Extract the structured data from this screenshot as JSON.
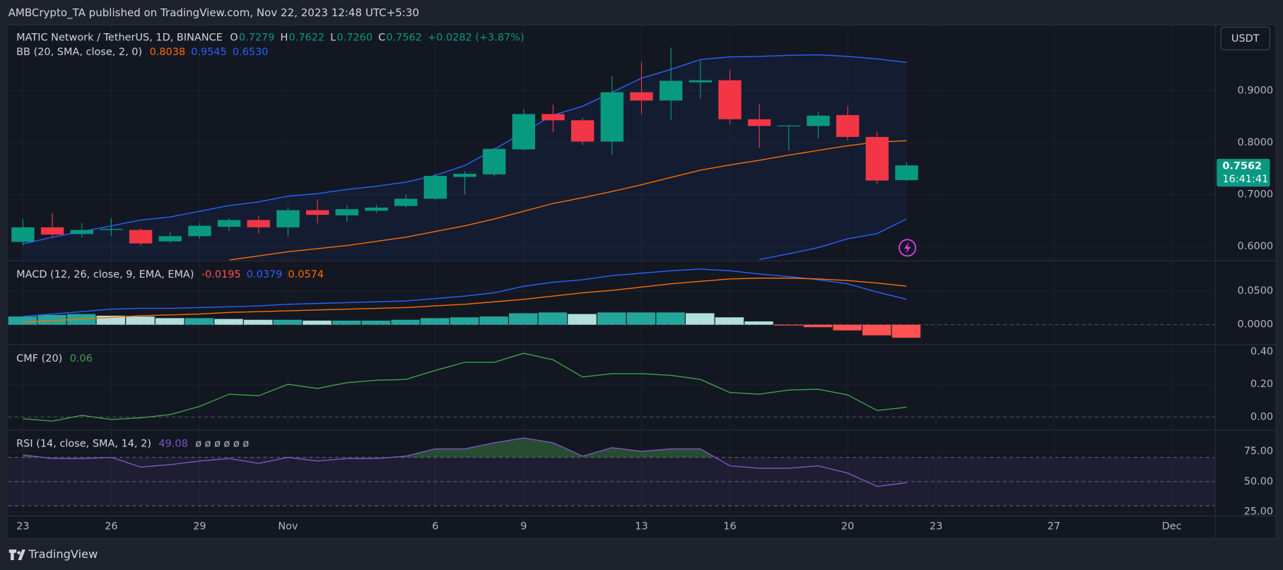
{
  "header": {
    "publisher": "AMBCrypto_TA published on TradingView.com, Nov 22, 2023 12:48 UTC+5:30"
  },
  "footer": {
    "brand": "TradingView"
  },
  "currency": "USDT",
  "chart_data": [
    {
      "type": "candlestick",
      "title": "MATIC Network / TetherUS, 1D, BINANCE",
      "ohlc_labels": [
        "O",
        "H",
        "L",
        "C"
      ],
      "ohlc_legend": [
        "0.7279",
        "0.7622",
        "0.7260",
        "0.7562"
      ],
      "change": "+0.0282 (+3.87%)",
      "last_price_label": "0.7562",
      "countdown": "16:41:41",
      "up_color": "#089981",
      "down_color": "#f23645",
      "open": [
        0.609,
        0.637,
        0.624,
        0.632,
        0.632,
        0.61,
        0.62,
        0.638,
        0.651,
        0.637,
        0.67,
        0.66,
        0.669,
        0.678,
        0.692,
        0.734,
        0.739,
        0.787,
        0.855,
        0.843,
        0.802,
        0.897,
        0.881,
        0.916,
        0.92,
        0.845,
        0.832,
        0.832,
        0.853,
        0.811,
        0.7279
      ],
      "high": [
        0.653,
        0.665,
        0.645,
        0.655,
        0.635,
        0.628,
        0.645,
        0.655,
        0.66,
        0.675,
        0.69,
        0.68,
        0.68,
        0.7,
        0.74,
        0.745,
        0.79,
        0.865,
        0.873,
        0.848,
        0.928,
        0.955,
        0.983,
        0.958,
        0.94,
        0.874,
        0.834,
        0.86,
        0.87,
        0.821,
        0.7622
      ],
      "low": [
        0.602,
        0.618,
        0.618,
        0.62,
        0.602,
        0.607,
        0.615,
        0.63,
        0.625,
        0.62,
        0.645,
        0.648,
        0.665,
        0.675,
        0.69,
        0.7,
        0.735,
        0.785,
        0.82,
        0.795,
        0.776,
        0.855,
        0.843,
        0.885,
        0.835,
        0.79,
        0.785,
        0.808,
        0.805,
        0.721,
        0.726
      ],
      "close": [
        0.637,
        0.623,
        0.632,
        0.634,
        0.606,
        0.62,
        0.64,
        0.651,
        0.637,
        0.67,
        0.661,
        0.672,
        0.675,
        0.692,
        0.736,
        0.74,
        0.788,
        0.855,
        0.843,
        0.802,
        0.897,
        0.881,
        0.919,
        0.92,
        0.845,
        0.832,
        0.833,
        0.852,
        0.811,
        0.727,
        0.7562
      ],
      "bollinger": {
        "title": "BB (20, SMA, close, 2, 0)",
        "legend_values": [
          "0.8038",
          "0.9545",
          "0.6530"
        ],
        "basis_color": "#ff6d00",
        "band_color": "#2962ff",
        "basis": [
          null,
          null,
          null,
          null,
          null,
          null,
          null,
          0.574,
          0.582,
          0.59,
          0.596,
          0.602,
          0.61,
          0.618,
          0.629,
          0.64,
          0.653,
          0.668,
          0.683,
          0.694,
          0.706,
          0.719,
          0.733,
          0.747,
          0.757,
          0.766,
          0.776,
          0.785,
          0.794,
          0.801,
          0.8038
        ],
        "upper": [
          0.605,
          0.618,
          0.629,
          0.64,
          0.651,
          0.657,
          0.668,
          0.679,
          0.686,
          0.697,
          0.702,
          0.71,
          0.716,
          0.724,
          0.737,
          0.756,
          0.787,
          0.82,
          0.853,
          0.87,
          0.897,
          0.924,
          0.941,
          0.96,
          0.965,
          0.966,
          0.968,
          0.969,
          0.966,
          0.961,
          0.9545
        ],
        "lower": [
          null,
          null,
          null,
          null,
          null,
          null,
          null,
          null,
          null,
          null,
          null,
          null,
          null,
          null,
          null,
          null,
          null,
          null,
          null,
          null,
          null,
          null,
          null,
          null,
          null,
          0.575,
          0.586,
          0.598,
          0.615,
          0.625,
          0.653
        ]
      },
      "ylim": [
        0.574,
        1.024
      ],
      "yticks": [
        {
          "value": 0.6,
          "label": "0.6000"
        },
        {
          "value": 0.7,
          "label": "0.7000"
        },
        {
          "value": 0.8,
          "label": "0.8000"
        },
        {
          "value": 0.9,
          "label": "0.9000"
        }
      ],
      "xticks": [
        {
          "value": 0,
          "label": "23"
        },
        {
          "value": 3,
          "label": "26"
        },
        {
          "value": 6,
          "label": "29"
        },
        {
          "value": 9,
          "label": "Nov"
        },
        {
          "value": 14,
          "label": "6"
        },
        {
          "value": 17,
          "label": "9"
        },
        {
          "value": 21,
          "label": "13"
        },
        {
          "value": 24,
          "label": "16"
        },
        {
          "value": 28,
          "label": "20"
        },
        {
          "value": 31,
          "label": "23"
        },
        {
          "value": 35,
          "label": "27"
        },
        {
          "value": 39,
          "label": "Dec"
        }
      ],
      "grid": true
    },
    {
      "type": "macd",
      "title": "MACD (12, 26, close, 9, EMA, EMA)",
      "histogram_colors": {
        "grow_above": "#26a69a",
        "fall_above": "#b2dfdb",
        "grow_below": "#ffcdd2",
        "fall_below": "#ff5252"
      },
      "series": [
        {
          "color": "#ff5252",
          "values": [
            0.0122,
            0.0146,
            0.0159,
            0.0134,
            0.0122,
            0.0098,
            0.0098,
            0.0085,
            0.0073,
            0.0073,
            0.0061,
            0.0061,
            0.0061,
            0.0073,
            0.0098,
            0.011,
            0.0122,
            0.0171,
            0.0183,
            0.0159,
            0.0183,
            0.0183,
            0.0183,
            0.0171,
            0.011,
            0.0049,
            -0.0012,
            -0.0037,
            -0.0085,
            -0.0159,
            -0.0195
          ]
        },
        {
          "color": "#2962ff",
          "values": [
            0.0122,
            0.0159,
            0.0195,
            0.0232,
            0.0244,
            0.0244,
            0.0256,
            0.0268,
            0.0281,
            0.0305,
            0.0317,
            0.0329,
            0.0342,
            0.0354,
            0.039,
            0.0427,
            0.0476,
            0.0573,
            0.0634,
            0.0671,
            0.0732,
            0.0769,
            0.0805,
            0.083,
            0.0805,
            0.0756,
            0.072,
            0.0671,
            0.061,
            0.0488,
            0.0379
          ]
        },
        {
          "color": "#ff6d00",
          "values": [
            0.0037,
            0.0061,
            0.0085,
            0.011,
            0.0134,
            0.0146,
            0.0159,
            0.0183,
            0.0195,
            0.0207,
            0.022,
            0.0232,
            0.0244,
            0.0256,
            0.0281,
            0.0305,
            0.0342,
            0.0378,
            0.0427,
            0.0476,
            0.0512,
            0.0561,
            0.061,
            0.0647,
            0.0683,
            0.0695,
            0.0695,
            0.0683,
            0.0659,
            0.0622,
            0.0574
          ]
        }
      ],
      "ylim": [
        -0.028,
        0.094
      ],
      "yticks": [
        {
          "value": 0,
          "label": "0.0000"
        },
        {
          "value": 0.05,
          "label": "0.0500"
        }
      ],
      "zero_line": true
    },
    {
      "type": "line",
      "title": "CMF (20)",
      "series": [
        {
          "color": "#43a047",
          "values": [
            -0.01,
            -0.025,
            0.01,
            -0.015,
            -0.005,
            0.015,
            0.065,
            0.14,
            0.13,
            0.2,
            0.175,
            0.21,
            0.225,
            0.23,
            0.285,
            0.335,
            0.335,
            0.39,
            0.35,
            0.245,
            0.265,
            0.265,
            0.255,
            0.23,
            0.15,
            0.14,
            0.165,
            0.17,
            0.135,
            0.04,
            0.06
          ]
        }
      ],
      "ylim": [
        -0.075,
        0.435
      ],
      "yticks": [
        {
          "value": 0,
          "label": "0.00"
        },
        {
          "value": 0.2,
          "label": "0.20"
        },
        {
          "value": 0.4,
          "label": "0.40"
        }
      ],
      "zero_line": true
    },
    {
      "type": "rsi",
      "title": "RSI (14, close, SMA, 14, 2)",
      "extra": "ø ø ø ø ø ø",
      "levels": [
        70,
        50,
        30
      ],
      "band_color": "#7e57c2",
      "overbought_color": "#4caf50",
      "series": [
        {
          "color": "#7e57c2",
          "values": [
            72,
            69,
            69,
            70,
            62,
            64,
            67,
            69,
            65,
            70,
            67,
            69,
            69,
            71,
            77,
            77,
            82,
            86,
            82,
            71,
            78,
            75,
            77,
            77,
            63,
            61,
            61,
            63,
            57,
            46,
            49.08
          ]
        }
      ],
      "ylim": [
        22.3,
        91.8
      ],
      "yticks": [
        {
          "value": 25,
          "label": "25.00"
        },
        {
          "value": 50,
          "label": "50.00"
        },
        {
          "value": 75,
          "label": "75.00"
        }
      ]
    }
  ]
}
